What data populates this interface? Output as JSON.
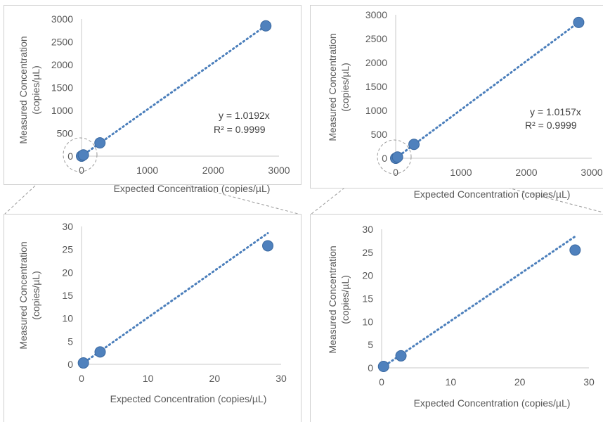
{
  "chart_data": [
    {
      "type": "scatter",
      "xlabel": "Expected Concentration (copies/µL)",
      "ylabel": "Measured Concentration (copies/µL)",
      "xlim": [
        0,
        3000
      ],
      "ylim": [
        0,
        3000
      ],
      "xticks": [
        0,
        1000,
        2000,
        3000
      ],
      "yticks": [
        0,
        500,
        1000,
        1500,
        2000,
        2500,
        3000
      ],
      "points": [
        {
          "x": 0.28,
          "y": 0.3
        },
        {
          "x": 2.8,
          "y": 2.7
        },
        {
          "x": 28,
          "y": 26
        },
        {
          "x": 280,
          "y": 290
        },
        {
          "x": 2800,
          "y": 2850
        }
      ],
      "trendline": {
        "slope": 1.0192
      },
      "equation": "y = 1.0192x",
      "r2": "R² = 0.9999"
    },
    {
      "type": "scatter",
      "xlabel": "Expected Concentration (copies/µL)",
      "ylabel": "Measured Concentration (copies/µL)",
      "xlim": [
        0,
        3000
      ],
      "ylim": [
        0,
        3000
      ],
      "xticks": [
        0,
        1000,
        2000,
        3000
      ],
      "yticks": [
        0,
        500,
        1000,
        1500,
        2000,
        2500,
        3000
      ],
      "points": [
        {
          "x": 0.28,
          "y": 0.3
        },
        {
          "x": 2.8,
          "y": 2.6
        },
        {
          "x": 28,
          "y": 25.5
        },
        {
          "x": 280,
          "y": 290
        },
        {
          "x": 2800,
          "y": 2840
        }
      ],
      "trendline": {
        "slope": 1.0157
      },
      "equation": "y = 1.0157x",
      "r2": "R² = 0.9999"
    },
    {
      "type": "scatter",
      "xlabel": "Expected Concentration (copies/µL)",
      "ylabel": "Measured Concentration (copies/µL)",
      "xlim": [
        0,
        30
      ],
      "ylim": [
        0,
        30
      ],
      "xticks": [
        0,
        10,
        20,
        30
      ],
      "yticks": [
        0,
        5,
        10,
        15,
        20,
        25,
        30
      ],
      "points": [
        {
          "x": 0.28,
          "y": 0.3
        },
        {
          "x": 2.8,
          "y": 2.7
        },
        {
          "x": 28,
          "y": 25.8
        }
      ],
      "trendline": {
        "slope": 1.0192
      }
    },
    {
      "type": "scatter",
      "xlabel": "Expected Concentration (copies/µL)",
      "ylabel": "Measured Concentration (copies/µL)",
      "xlim": [
        0,
        30
      ],
      "ylim": [
        0,
        30
      ],
      "xticks": [
        0,
        10,
        20,
        30
      ],
      "yticks": [
        0,
        5,
        10,
        15,
        20,
        25,
        30
      ],
      "points": [
        {
          "x": 0.28,
          "y": 0.3
        },
        {
          "x": 2.8,
          "y": 2.6
        },
        {
          "x": 28,
          "y": 25.5
        }
      ],
      "trendline": {
        "slope": 1.0157
      }
    }
  ]
}
